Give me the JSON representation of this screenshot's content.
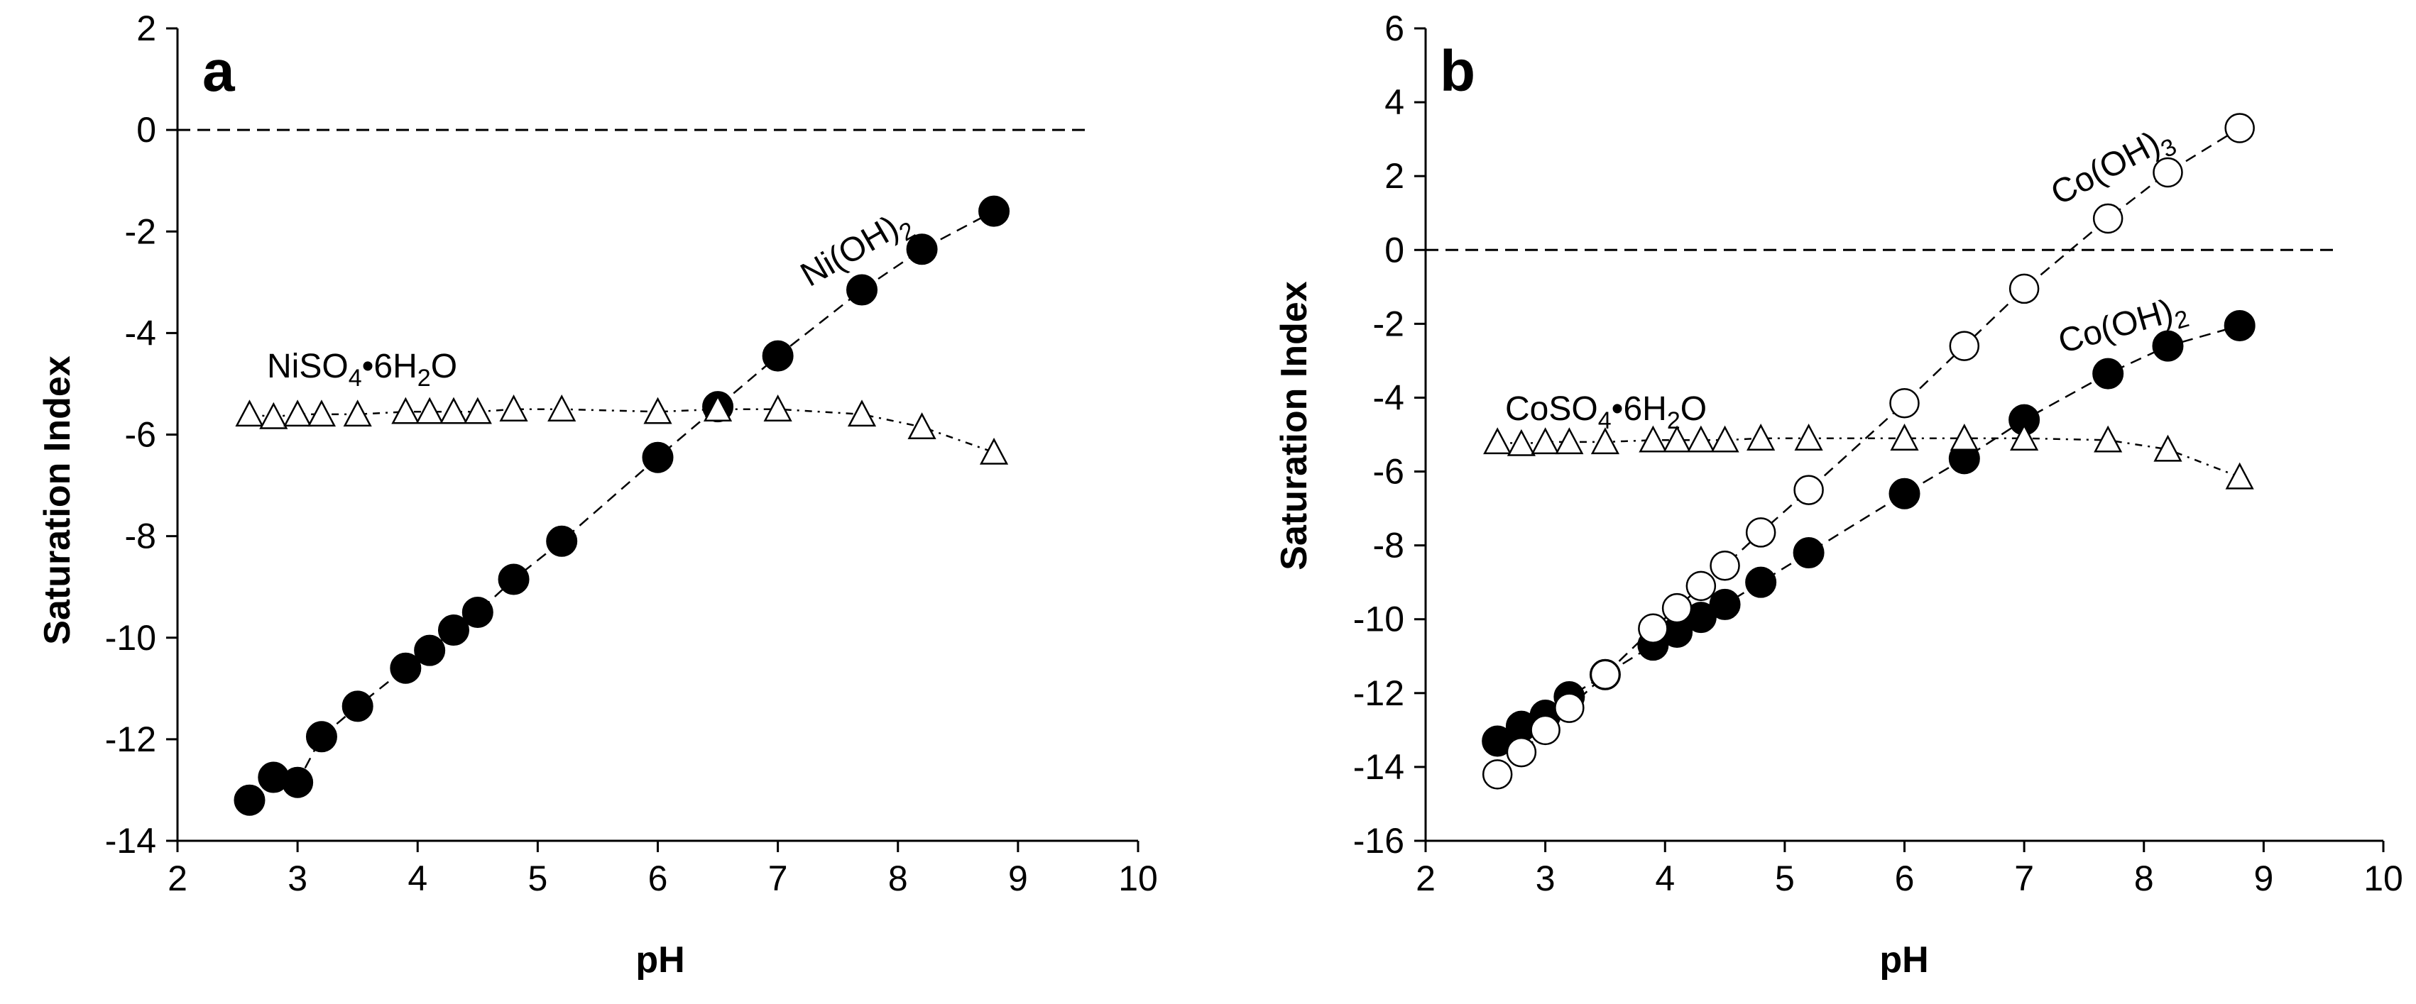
{
  "chart_data": [
    {
      "type": "scatter",
      "panel_label": "a",
      "xlabel": "pH",
      "ylabel": "Saturation Index",
      "xlim": [
        2,
        10
      ],
      "ylim": [
        -14,
        2
      ],
      "xticks": [
        2,
        3,
        4,
        5,
        6,
        7,
        8,
        9,
        10
      ],
      "yticks": [
        -14,
        -12,
        -10,
        -8,
        -6,
        -4,
        -2,
        0,
        2
      ],
      "reference_line_y": 0,
      "series": [
        {
          "name": "Ni(OH)2",
          "label_main": "Ni(OH)",
          "label_sub": "2",
          "label_tail": "",
          "marker": "filled-circle",
          "line": "dashed",
          "x": [
            2.6,
            2.8,
            3.0,
            3.2,
            3.5,
            3.9,
            4.1,
            4.3,
            4.5,
            4.8,
            5.2,
            6.0,
            6.5,
            7.0,
            7.7,
            8.2,
            8.8
          ],
          "y": [
            -13.2,
            -12.75,
            -12.85,
            -11.95,
            -11.35,
            -10.6,
            -10.25,
            -9.85,
            -9.5,
            -8.85,
            -8.1,
            -6.45,
            -5.45,
            -4.45,
            -3.15,
            -2.35,
            -1.6
          ]
        },
        {
          "name": "NiSO4•6H2O",
          "label_main": "NiSO",
          "label_sub": "4",
          "label_tail": "•6H",
          "label_sub2": "2",
          "label_end": "O",
          "marker": "open-triangle",
          "line": "dash-dot",
          "x": [
            2.6,
            2.8,
            3.0,
            3.2,
            3.5,
            3.9,
            4.1,
            4.3,
            4.5,
            4.8,
            5.2,
            6.0,
            6.5,
            7.0,
            7.7,
            8.2,
            8.8
          ],
          "y": [
            -5.6,
            -5.65,
            -5.6,
            -5.6,
            -5.6,
            -5.55,
            -5.55,
            -5.55,
            -5.55,
            -5.5,
            -5.5,
            -5.55,
            -5.5,
            -5.5,
            -5.6,
            -5.85,
            -6.35
          ]
        }
      ]
    },
    {
      "type": "scatter",
      "panel_label": "b",
      "xlabel": "pH",
      "ylabel": "Saturation Index",
      "xlim": [
        2,
        10
      ],
      "ylim": [
        -16,
        6
      ],
      "xticks": [
        2,
        3,
        4,
        5,
        6,
        7,
        8,
        9,
        10
      ],
      "yticks": [
        -16,
        -14,
        -12,
        -10,
        -8,
        -6,
        -4,
        -2,
        0,
        2,
        4,
        6
      ],
      "reference_line_y": 0,
      "series": [
        {
          "name": "Co(OH)2",
          "label_main": "Co(OH)",
          "label_sub": "2",
          "marker": "filled-circle",
          "line": "dashed",
          "x": [
            2.6,
            2.8,
            3.0,
            3.2,
            3.5,
            3.9,
            4.1,
            4.3,
            4.5,
            4.8,
            5.2,
            6.0,
            6.5,
            7.0,
            7.7,
            8.2,
            8.8
          ],
          "y": [
            -13.3,
            -12.9,
            -12.6,
            -12.1,
            -11.5,
            -10.7,
            -10.35,
            -9.95,
            -9.6,
            -9.0,
            -8.2,
            -6.6,
            -5.65,
            -4.6,
            -3.35,
            -2.6,
            -2.05
          ]
        },
        {
          "name": "Co(OH)3",
          "label_main": "Co(OH)",
          "label_sub": "3",
          "marker": "open-circle",
          "line": "dashed",
          "x": [
            2.6,
            2.8,
            3.0,
            3.2,
            3.5,
            3.9,
            4.1,
            4.3,
            4.5,
            4.8,
            5.2,
            6.0,
            6.5,
            7.0,
            7.7,
            8.2,
            8.8
          ],
          "y": [
            -14.2,
            -13.6,
            -13.0,
            -12.4,
            -11.5,
            -10.25,
            -9.7,
            -9.1,
            -8.55,
            -7.65,
            -6.5,
            -4.15,
            -2.6,
            -1.05,
            0.85,
            2.1,
            3.3
          ]
        },
        {
          "name": "CoSO4•6H2O",
          "label_main": "CoSO",
          "label_sub": "4",
          "label_tail": "•6H",
          "label_sub2": "2",
          "label_end": "O",
          "marker": "open-triangle",
          "line": "dash-dot",
          "x": [
            2.6,
            2.8,
            3.0,
            3.2,
            3.5,
            3.9,
            4.1,
            4.3,
            4.5,
            4.8,
            5.2,
            6.0,
            6.5,
            7.0,
            7.7,
            8.2,
            8.8
          ],
          "y": [
            -5.2,
            -5.25,
            -5.2,
            -5.2,
            -5.2,
            -5.15,
            -5.15,
            -5.15,
            -5.15,
            -5.1,
            -5.1,
            -5.1,
            -5.1,
            -5.1,
            -5.15,
            -5.4,
            -6.15
          ]
        }
      ]
    }
  ]
}
